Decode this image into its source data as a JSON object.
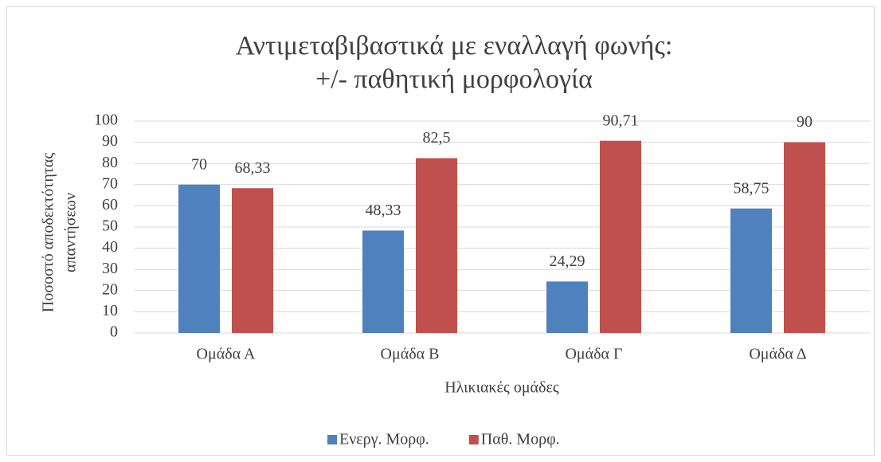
{
  "chart_data": {
    "type": "bar",
    "title": [
      "Αντιμεταβιβαστικά με εναλλαγή φωνής:",
      "+/- παθητική μορφολογία"
    ],
    "y_label": [
      "Ποσοστό αποδεκτότητας",
      "απαντήσεων"
    ],
    "x_label": "Ηλικιακές ομάδες",
    "categories": [
      "Ομάδα Α",
      "Ομάδα Β",
      "Ομάδα Γ",
      "Ομάδα Δ"
    ],
    "series": [
      {
        "name": "Ενεργ. Μορφ.",
        "color": "#4f81bd",
        "values": [
          70,
          48.33,
          24.29,
          58.75
        ],
        "value_labels": [
          "70",
          "48,33",
          "24,29",
          "58,75"
        ]
      },
      {
        "name": "Παθ. Μορφ.",
        "color": "#c0504d",
        "values": [
          68.33,
          82.5,
          90.71,
          90
        ],
        "value_labels": [
          "68,33",
          "82,5",
          "90,71",
          "90"
        ]
      }
    ],
    "ylim": [
      0,
      100
    ],
    "yticks": [
      0,
      10,
      20,
      30,
      40,
      50,
      60,
      70,
      80,
      90,
      100
    ],
    "grid": true,
    "legend": "bottom"
  }
}
